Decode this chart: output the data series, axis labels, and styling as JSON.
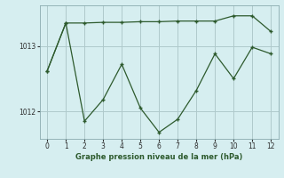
{
  "xlabel": "Graphe pression niveau de la mer (hPa)",
  "bg_color": "#d6eef0",
  "grid_color": "#afc9cb",
  "line_color": "#2d5a2d",
  "x_ticks": [
    0,
    1,
    2,
    3,
    4,
    5,
    6,
    7,
    8,
    9,
    10,
    11,
    12
  ],
  "y_ticks": [
    1012,
    1013
  ],
  "ylim": [
    1011.58,
    1013.62
  ],
  "xlim": [
    -0.4,
    12.4
  ],
  "line1_x": [
    0,
    1,
    2,
    3,
    4,
    5,
    6,
    7,
    8,
    9,
    10,
    11,
    12
  ],
  "line1_y": [
    1012.62,
    1013.35,
    1013.35,
    1013.36,
    1013.36,
    1013.37,
    1013.37,
    1013.38,
    1013.38,
    1013.38,
    1013.46,
    1013.46,
    1013.22
  ],
  "line2_x": [
    0,
    1,
    2,
    3,
    4,
    5,
    6,
    7,
    8,
    9,
    10,
    11,
    12
  ],
  "line2_y": [
    1012.62,
    1013.35,
    1011.85,
    1012.18,
    1012.72,
    1012.05,
    1011.68,
    1011.88,
    1012.32,
    1012.88,
    1012.5,
    1012.98,
    1012.88
  ]
}
